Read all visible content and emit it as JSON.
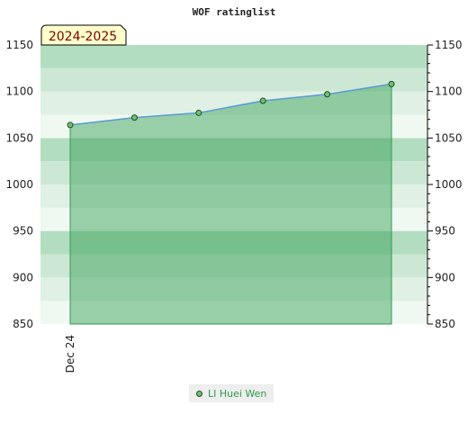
{
  "chart_data": {
    "type": "area",
    "title": "WOF ratinglist",
    "season_label": "2024-2025",
    "ylim": [
      850,
      1150
    ],
    "yticks": [
      850,
      900,
      950,
      1000,
      1050,
      1100,
      1150
    ],
    "xtick_labels": [
      "Dec 24"
    ],
    "grid": "horizontal bands",
    "legend_placement": "bottom-center",
    "series": [
      {
        "name": "LI Huei Wen",
        "values": [
          1064,
          1072,
          1077,
          1090,
          1097,
          1108
        ],
        "color": "#2e9b4f",
        "line_color": "#5b9bd5"
      }
    ]
  }
}
